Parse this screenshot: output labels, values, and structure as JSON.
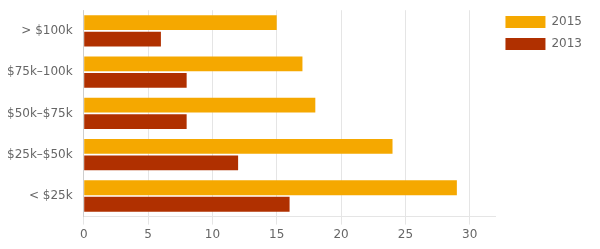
{
  "chart_data": {
    "type": "bar",
    "orientation": "horizontal",
    "categories": [
      "> $100k",
      "$75k–100k",
      "$50k–$75k",
      "$25k–$50k",
      "< $25k"
    ],
    "series": [
      {
        "name": "2015",
        "color": "#F5A800",
        "values": [
          15,
          17,
          18,
          24,
          29
        ]
      },
      {
        "name": "2013",
        "color": "#B03000",
        "values": [
          6,
          8,
          8,
          12,
          16
        ]
      }
    ],
    "xlim": [
      0,
      32
    ],
    "xticks": [
      0,
      5,
      10,
      15,
      20,
      25,
      30
    ],
    "grid": true,
    "legend": "upper right"
  }
}
